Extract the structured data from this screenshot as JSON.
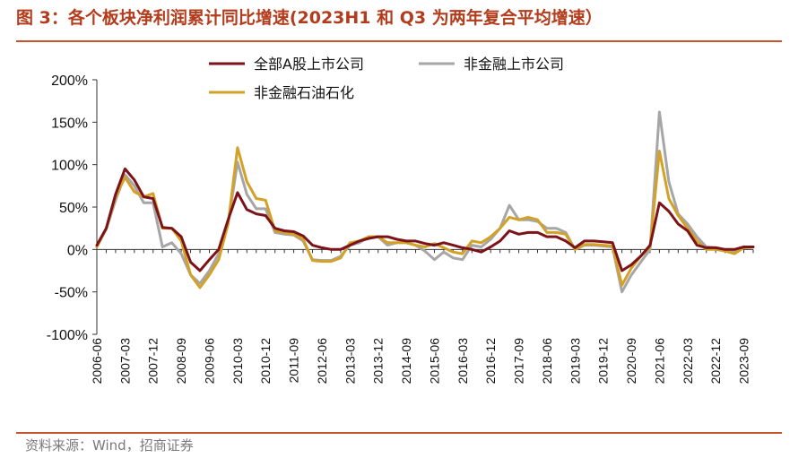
{
  "header": {
    "title": "图 3：各个板块净利润累计同比增速(2023H1 和 Q3 为两年复合平均增速）"
  },
  "footer": {
    "source": "资料来源：Wind，招商证券"
  },
  "colors": {
    "accent": "#c8542e",
    "title": "#b23c1b",
    "series_all_a": "#7b1319",
    "series_non_fin": "#a6a6a6",
    "series_non_fin_ex_petro": "#d3a126"
  },
  "chart_data": {
    "type": "line",
    "title": "各个板块净利润累计同比增速(2023H1 和 Q3 为两年复合平均增速）",
    "xlabel": "",
    "ylabel": "",
    "ylim": [
      -100,
      200
    ],
    "yticks": [
      "200%",
      "150%",
      "100%",
      "50%",
      "0%",
      "-50%",
      "-100%"
    ],
    "ytick_values": [
      200,
      150,
      100,
      50,
      0,
      -50,
      -100
    ],
    "x_start": "2006-06",
    "x_step_months": 3,
    "xtick_labels": [
      "2006-06",
      "2007-03",
      "2007-12",
      "2008-09",
      "2009-06",
      "2010-03",
      "2010-12",
      "2011-09",
      "2012-06",
      "2013-03",
      "2013-12",
      "2014-09",
      "2015-06",
      "2016-03",
      "2016-12",
      "2017-09",
      "2018-06",
      "2019-03",
      "2019-12",
      "2020-09",
      "2021-06",
      "2022-03",
      "2022-12",
      "2023-09"
    ],
    "xtick_index": [
      0,
      3,
      6,
      9,
      12,
      15,
      18,
      21,
      24,
      27,
      30,
      33,
      36,
      39,
      42,
      45,
      48,
      51,
      54,
      57,
      60,
      63,
      66,
      69
    ],
    "legend_position": "top",
    "series": [
      {
        "name": "全部A股上市公司",
        "color": "#7b1319",
        "values": [
          5,
          25,
          65,
          95,
          82,
          62,
          60,
          26,
          25,
          15,
          -15,
          -25,
          -12,
          0,
          35,
          67,
          47,
          42,
          40,
          25,
          22,
          21,
          16,
          5,
          2,
          0,
          0,
          5,
          10,
          13,
          15,
          15,
          12,
          10,
          10,
          7,
          5,
          8,
          5,
          2,
          0,
          -3,
          3,
          10,
          22,
          18,
          20,
          20,
          15,
          15,
          10,
          2,
          10,
          10,
          9,
          8,
          -25,
          -18,
          -8,
          5,
          55,
          45,
          30,
          22,
          5,
          2,
          2,
          0,
          0,
          3,
          3
        ]
      },
      {
        "name": "非金融上市公司",
        "color": "#a6a6a6",
        "values": [
          3,
          24,
          58,
          88,
          75,
          55,
          55,
          3,
          8,
          -5,
          -30,
          -40,
          -25,
          -5,
          30,
          103,
          65,
          48,
          48,
          20,
          18,
          17,
          10,
          -12,
          -13,
          -13,
          -8,
          5,
          8,
          15,
          15,
          5,
          8,
          8,
          5,
          -2,
          -12,
          -3,
          -10,
          -12,
          5,
          3,
          12,
          25,
          52,
          35,
          35,
          33,
          25,
          25,
          20,
          0,
          5,
          5,
          4,
          3,
          -50,
          -30,
          -15,
          0,
          162,
          80,
          42,
          30,
          15,
          3,
          2,
          0,
          -3,
          2,
          3
        ]
      },
      {
        "name": "非金融石油石化",
        "color": "#d3a126",
        "values": [
          3,
          25,
          62,
          85,
          68,
          62,
          66,
          25,
          25,
          10,
          -30,
          -45,
          -30,
          -12,
          30,
          120,
          80,
          60,
          58,
          22,
          20,
          18,
          12,
          -13,
          -14,
          -14,
          -10,
          8,
          10,
          15,
          15,
          8,
          8,
          8,
          5,
          3,
          7,
          2,
          -3,
          -5,
          10,
          8,
          15,
          25,
          38,
          35,
          38,
          35,
          20,
          20,
          18,
          0,
          6,
          6,
          5,
          4,
          -42,
          -22,
          -8,
          3,
          116,
          60,
          40,
          25,
          10,
          0,
          0,
          -2,
          -5,
          2,
          3
        ]
      }
    ],
    "legend_order": [
      0,
      1,
      2
    ]
  }
}
